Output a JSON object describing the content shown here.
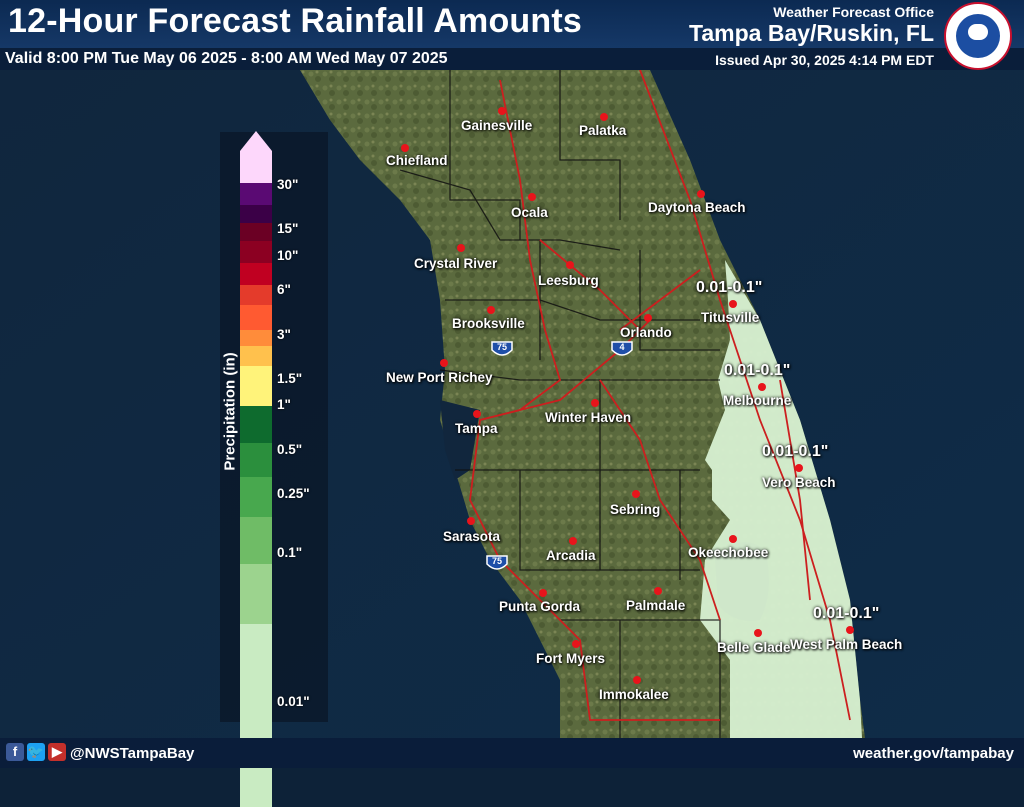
{
  "header": {
    "title": "12-Hour Forecast Rainfall Amounts",
    "valid": "Valid 8:00 PM Tue May 06 2025 - 8:00 AM Wed May 07 2025",
    "office": "Weather Forecast Office",
    "location": "Tampa Bay/Ruskin, FL",
    "issued": "Issued Apr 30, 2025 4:14 PM EDT"
  },
  "footer": {
    "handle": "@NWSTampaBay",
    "url": "weather.gov/tampabay",
    "icons": [
      "facebook-icon",
      "twitter-icon",
      "youtube-icon"
    ]
  },
  "legend": {
    "title": "Precipitation (in)",
    "ticks": [
      "30\"",
      "15\"",
      "10\"",
      "6\"",
      "3\"",
      "1.5\"",
      "1\"",
      "0.5\"",
      "0.25\"",
      "0.1\"",
      "0.01\""
    ],
    "colors": [
      "#fdd7fb",
      "#5a0a73",
      "#3b0047",
      "#6b0024",
      "#8c0022",
      "#c00021",
      "#e43b2b",
      "#ff5a31",
      "#ff8c3a",
      "#ffc14d",
      "#fff37a",
      "#0e6b2e",
      "#2b8f3d",
      "#48a84e",
      "#6fbc66",
      "#9cd38e",
      "#c9ebc2"
    ]
  },
  "cities": [
    "Gainesville",
    "Palatka",
    "Chiefland",
    "Ocala",
    "Daytona Beach",
    "Crystal River",
    "Leesburg",
    "Titusville",
    "Brooksville",
    "Orlando",
    "New Port Richey",
    "Melbourne",
    "Tampa",
    "Winter Haven",
    "Vero Beach",
    "Sebring",
    "Sarasota",
    "Arcadia",
    "Okeechobee",
    "Punta Gorda",
    "Palmdale",
    "Belle Glade",
    "West Palm Beach",
    "Fort Myers",
    "Immokalee"
  ],
  "rainfall_labels": [
    "0.01-0.1\"",
    "0.01-0.1\"",
    "0.01-0.1\"",
    "0.01-0.1\""
  ],
  "interstates": [
    "75",
    "4",
    "75"
  ],
  "colors": {
    "city_dot": "#e8141b",
    "county_line": "#111111",
    "road": "#cc1f1f",
    "rain_area": "#d6efd0"
  }
}
